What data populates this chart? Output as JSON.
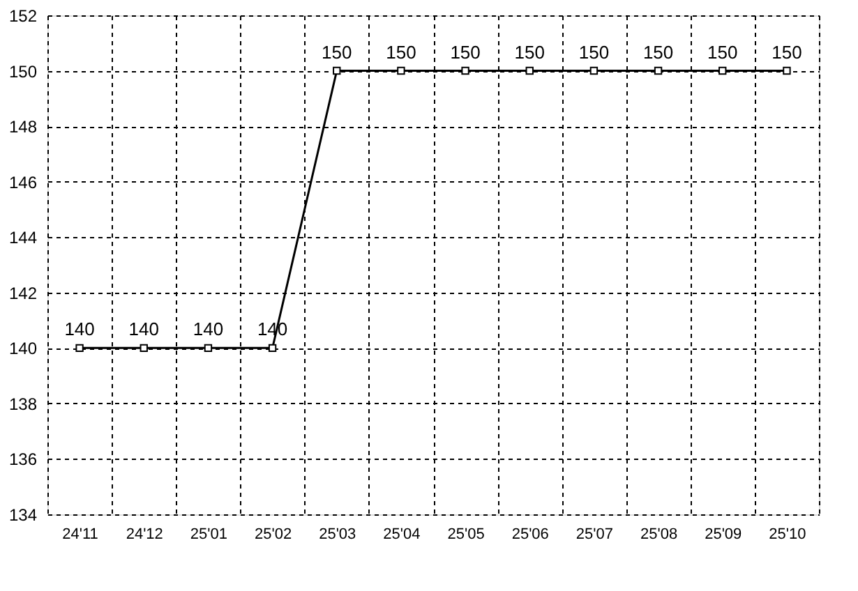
{
  "chart_data": {
    "type": "line",
    "categories": [
      "24'11",
      "24'12",
      "25'01",
      "25'02",
      "25'03",
      "25'04",
      "25'05",
      "25'06",
      "25'07",
      "25'08",
      "25'09",
      "25'10"
    ],
    "values": [
      140,
      140,
      140,
      140,
      150,
      150,
      150,
      150,
      150,
      150,
      150,
      150
    ],
    "color": "#000000",
    "ylim": [
      134,
      152
    ],
    "yticks": [
      134,
      136,
      138,
      140,
      142,
      144,
      146,
      148,
      150,
      152
    ],
    "grid": true,
    "marker": "square",
    "line_style": "solid",
    "data_labels": true
  }
}
